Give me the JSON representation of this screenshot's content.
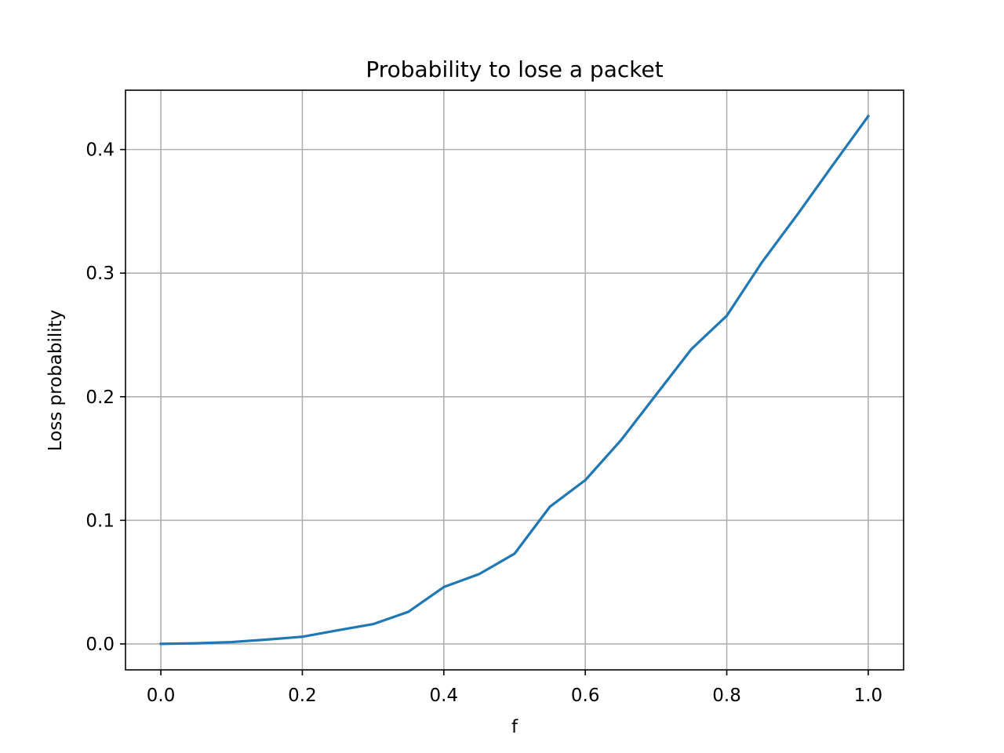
{
  "chart_data": {
    "type": "line",
    "title": "Probability to lose a packet",
    "xlabel": "f",
    "ylabel": "Loss probability",
    "xlim": [
      -0.05,
      1.05
    ],
    "ylim": [
      -0.021,
      0.448
    ],
    "grid": true,
    "xticks": [
      0.0,
      0.2,
      0.4,
      0.6,
      0.8,
      1.0
    ],
    "xtick_labels": [
      "0.0",
      "0.2",
      "0.4",
      "0.6",
      "0.8",
      "1.0"
    ],
    "yticks": [
      0.0,
      0.1,
      0.2,
      0.3,
      0.4
    ],
    "ytick_labels": [
      "0.0",
      "0.1",
      "0.2",
      "0.3",
      "0.4"
    ],
    "series": [
      {
        "color": "#1f77b4",
        "x": [
          0.0,
          0.05,
          0.1,
          0.15,
          0.2,
          0.25,
          0.3,
          0.35,
          0.4,
          0.45,
          0.5,
          0.55,
          0.6,
          0.65,
          0.7,
          0.75,
          0.8,
          0.85,
          0.9,
          0.95,
          1.0
        ],
        "y": [
          0.0,
          0.0005,
          0.0015,
          0.0035,
          0.0058,
          0.011,
          0.016,
          0.026,
          0.046,
          0.0565,
          0.073,
          0.111,
          0.1325,
          0.1645,
          0.2015,
          0.2385,
          0.2655,
          0.309,
          0.3475,
          0.3875,
          0.427
        ]
      }
    ]
  }
}
